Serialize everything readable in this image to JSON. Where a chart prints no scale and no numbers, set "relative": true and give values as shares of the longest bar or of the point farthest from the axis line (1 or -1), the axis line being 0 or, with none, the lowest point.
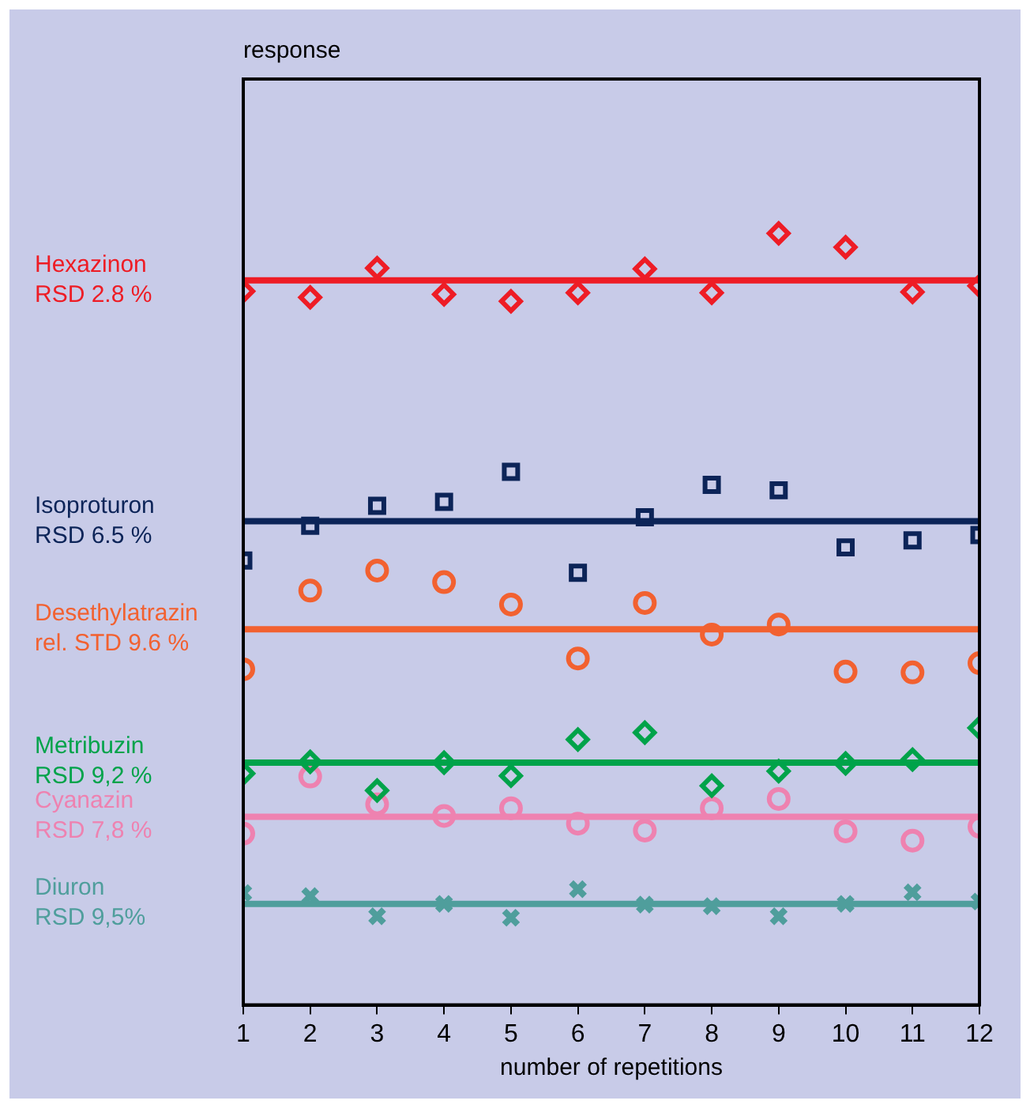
{
  "chart_data": {
    "type": "scatter",
    "xlabel": "number of repetitions",
    "annotations": [
      "response"
    ],
    "relative": true,
    "x": [
      1,
      2,
      3,
      4,
      5,
      6,
      7,
      8,
      9,
      10,
      11,
      12
    ],
    "xlim": [
      1,
      12
    ],
    "xticks": [
      1,
      2,
      3,
      4,
      5,
      6,
      7,
      8,
      9,
      10,
      11,
      12
    ],
    "tick_labels": "x",
    "grid": false,
    "legend": false,
    "series": [
      {
        "name": "Hexazinon\nRSD 2.8 %",
        "color": "#ee1c25",
        "marker": "diamond",
        "values": [
          0.925,
          0.917,
          0.955,
          0.921,
          0.912,
          0.923,
          0.954,
          0.923,
          1,
          0.982,
          0.924,
          0.932
        ]
      },
      {
        "name": "Isoproturon\nRSD 6.5 %",
        "color": "#0c2458",
        "marker": "square",
        "values": [
          0.576,
          0.621,
          0.647,
          0.652,
          0.691,
          0.56,
          0.632,
          0.674,
          0.667,
          0.593,
          0.602,
          0.609
        ]
      },
      {
        "name": "Desethylatrazin\nrel. STD 9.6 %",
        "color": "#f26130",
        "marker": "circle",
        "values": [
          0.435,
          0.537,
          0.563,
          0.548,
          0.519,
          0.449,
          0.521,
          0.48,
          0.493,
          0.432,
          0.431,
          0.443
        ]
      },
      {
        "name": "Metribuzin\nRSD 9,2 %",
        "color": "#00a34a",
        "marker": "diamond",
        "values": [
          0.3,
          0.315,
          0.278,
          0.314,
          0.297,
          0.344,
          0.353,
          0.284,
          0.303,
          0.313,
          0.318,
          0.359
        ]
      },
      {
        "name": "Cyanazin\nRSD 7,8 %",
        "color": "#ee82b0",
        "marker": "circle",
        "values": [
          0.222,
          0.296,
          0.26,
          0.245,
          0.255,
          0.235,
          0.226,
          0.255,
          0.267,
          0.225,
          0.213,
          0.231
        ]
      },
      {
        "name": "Diuron\nRSD 9,5%",
        "color": "#4f9e9c",
        "marker": "cross",
        "values": [
          0.145,
          0.141,
          0.115,
          0.131,
          0.113,
          0.15,
          0.13,
          0.128,
          0.115,
          0.131,
          0.146,
          0.134
        ]
      }
    ],
    "ref_lines": [
      {
        "axis": "y",
        "value": 0.939,
        "color": "#ee1c25"
      },
      {
        "axis": "y",
        "value": 0.627,
        "color": "#0c2458"
      },
      {
        "axis": "y",
        "value": 0.487,
        "color": "#f26130"
      },
      {
        "axis": "y",
        "value": 0.314,
        "color": "#00a34a"
      },
      {
        "axis": "y",
        "value": 0.244,
        "color": "#ee82b0"
      },
      {
        "axis": "y",
        "value": 0.131,
        "color": "#4f9e9c"
      }
    ]
  }
}
